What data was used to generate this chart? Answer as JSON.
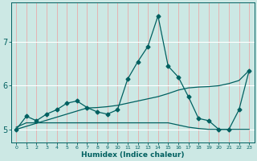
{
  "xlabel": "Humidex (Indice chaleur)",
  "background_color": "#cce8e4",
  "grid_color_v": "#e8aaaa",
  "grid_color_h": "#ffffff",
  "line_color": "#006060",
  "main_data_y": [
    5.0,
    5.3,
    5.2,
    5.35,
    5.45,
    5.6,
    5.65,
    5.5,
    5.4,
    5.35,
    5.45,
    6.15,
    6.55,
    6.9,
    7.6,
    6.45,
    6.2,
    5.75,
    5.25,
    5.2,
    5.0,
    5.0,
    5.45,
    6.35
  ],
  "trend_y": [
    5.0,
    5.07,
    5.14,
    5.21,
    5.28,
    5.35,
    5.42,
    5.49,
    5.5,
    5.52,
    5.55,
    5.6,
    5.65,
    5.7,
    5.75,
    5.82,
    5.9,
    5.95,
    5.97,
    5.98,
    6.0,
    6.05,
    6.12,
    6.35
  ],
  "flat_y": [
    5.05,
    5.15,
    5.15,
    5.15,
    5.15,
    5.15,
    5.15,
    5.15,
    5.15,
    5.15,
    5.15,
    5.15,
    5.15,
    5.15,
    5.15,
    5.15,
    5.1,
    5.05,
    5.02,
    5.0,
    5.0,
    5.0,
    5.0,
    5.0
  ],
  "ylim": [
    4.7,
    7.9
  ],
  "yticks": [
    5,
    6,
    7
  ],
  "n_points": 24,
  "marker_size": 2.5,
  "line_width": 0.9
}
